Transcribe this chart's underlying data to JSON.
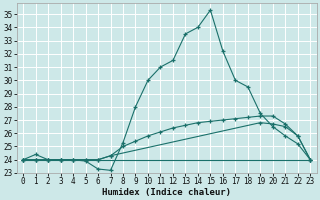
{
  "xlabel": "Humidex (Indice chaleur)",
  "xlim": [
    -0.5,
    23.5
  ],
  "ylim": [
    23,
    35.8
  ],
  "yticks": [
    23,
    24,
    25,
    26,
    27,
    28,
    29,
    30,
    31,
    32,
    33,
    34,
    35
  ],
  "xticks": [
    0,
    1,
    2,
    3,
    4,
    5,
    6,
    7,
    8,
    9,
    10,
    11,
    12,
    13,
    14,
    15,
    16,
    17,
    18,
    19,
    20,
    21,
    22,
    23
  ],
  "bg_color": "#cde8e8",
  "grid_color": "#ffffff",
  "line_color": "#1a706a",
  "lines": [
    {
      "x": [
        0,
        1,
        2,
        3,
        23
      ],
      "y": [
        24.0,
        24.0,
        24.0,
        24.0,
        24.0
      ]
    },
    {
      "x": [
        0,
        1,
        2,
        3,
        4,
        5,
        6,
        7,
        19,
        20,
        21,
        22,
        23
      ],
      "y": [
        24.0,
        24.0,
        24.0,
        24.0,
        24.0,
        24.0,
        24.0,
        24.3,
        26.8,
        26.7,
        26.5,
        25.8,
        24.0
      ]
    },
    {
      "x": [
        0,
        1,
        2,
        3,
        4,
        5,
        6,
        7,
        8,
        9,
        10,
        11,
        12,
        13,
        14,
        15,
        16,
        17,
        18,
        19,
        20,
        21,
        22,
        23
      ],
      "y": [
        24.0,
        24.0,
        24.0,
        24.0,
        24.0,
        24.0,
        24.0,
        24.3,
        25.0,
        25.4,
        25.8,
        26.1,
        26.4,
        26.6,
        26.8,
        26.9,
        27.0,
        27.1,
        27.2,
        27.3,
        27.3,
        26.7,
        25.8,
        24.0
      ]
    },
    {
      "x": [
        0,
        1,
        2,
        3,
        4,
        5,
        6,
        7,
        8,
        9,
        10,
        11,
        12,
        13,
        14,
        15,
        16,
        17,
        18,
        19,
        20,
        21,
        22,
        23
      ],
      "y": [
        24.0,
        24.4,
        24.0,
        24.0,
        24.0,
        23.9,
        23.3,
        23.2,
        25.3,
        28.0,
        30.0,
        31.0,
        31.5,
        33.5,
        34.0,
        35.3,
        32.2,
        30.0,
        29.5,
        27.5,
        26.5,
        25.8,
        25.2,
        24.0
      ]
    }
  ]
}
